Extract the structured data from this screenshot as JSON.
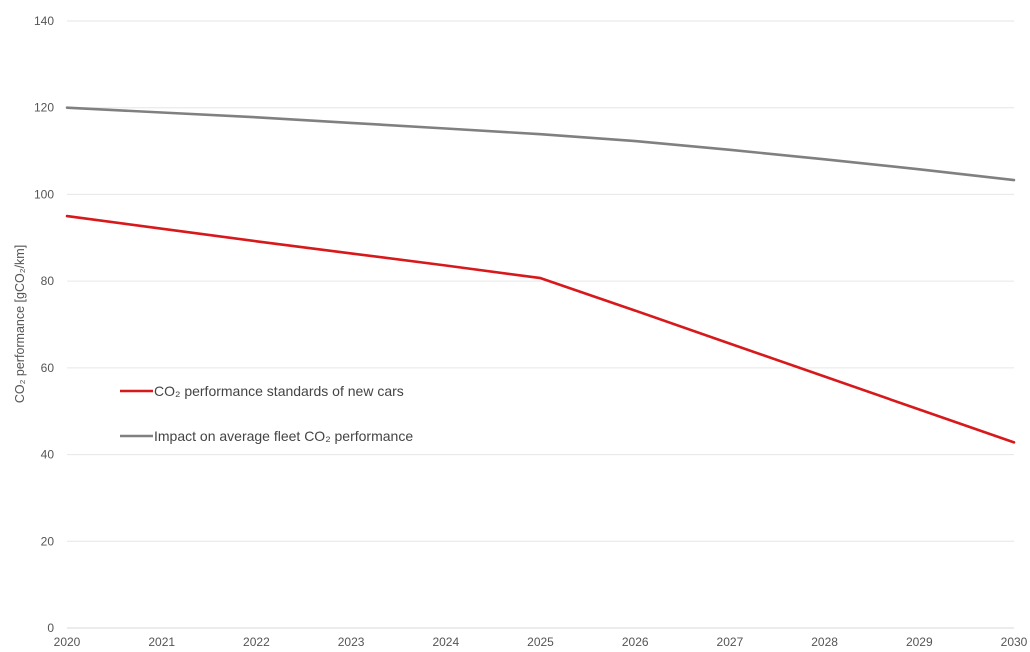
{
  "chart_data": {
    "type": "line",
    "title": "",
    "xlabel": "",
    "ylabel": "CO₂ performance [gCO₂/km]",
    "x": [
      2020,
      2021,
      2022,
      2023,
      2024,
      2025,
      2026,
      2027,
      2028,
      2029,
      2030
    ],
    "xlim": [
      2020,
      2030
    ],
    "ylim": [
      0,
      140
    ],
    "yticks": [
      0,
      20,
      40,
      60,
      80,
      100,
      120,
      140
    ],
    "xtick_labels": [
      "2020",
      "2021",
      "2022",
      "2023",
      "2024",
      "2025",
      "2026",
      "2027",
      "2028",
      "2029",
      "2030"
    ],
    "ytick_labels": [
      "0",
      "20",
      "40",
      "60",
      "80",
      "100",
      "120",
      "140"
    ],
    "grid": "horizontal",
    "legend_position": "center-left",
    "series": [
      {
        "name": "CO₂ performance standards of new cars",
        "color": "#d7191c",
        "values": [
          95.0,
          92.1,
          89.2,
          86.4,
          83.6,
          80.7,
          73.2,
          65.6,
          58.0,
          50.4,
          42.8
        ]
      },
      {
        "name": "Impact on average fleet CO₂ performance",
        "color": "#808080",
        "values": [
          120.0,
          118.9,
          117.8,
          116.5,
          115.2,
          113.9,
          112.3,
          110.3,
          108.1,
          105.8,
          103.3
        ]
      }
    ]
  }
}
